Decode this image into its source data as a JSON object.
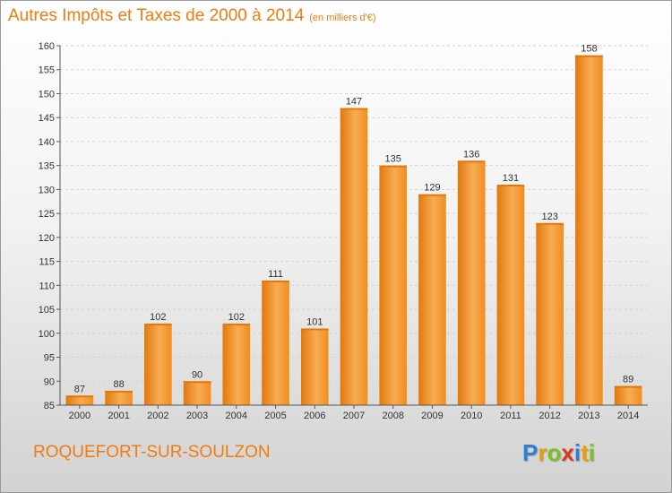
{
  "title": "Autres Impôts et Taxes de 2000 à 2014",
  "subtitle": "(en milliers d'€)",
  "location": "ROQUEFORT-SUR-SOULZON",
  "logo": {
    "letters": [
      "P",
      "r",
      "o",
      "x",
      "i",
      "t",
      "i"
    ],
    "colors": [
      "#2d7fd6",
      "#e8a100",
      "#79c220",
      "#d93a1b",
      "#2d7fd6",
      "#e8a100",
      "#79c220"
    ]
  },
  "chart_data": {
    "type": "bar",
    "title": "Autres Impôts et Taxes de 2000 à 2014",
    "subtitle": "(en milliers d'€)",
    "categories": [
      "2000",
      "2001",
      "2002",
      "2003",
      "2004",
      "2005",
      "2006",
      "2007",
      "2008",
      "2009",
      "2010",
      "2011",
      "2012",
      "2013",
      "2014"
    ],
    "values": [
      87,
      88,
      102,
      90,
      102,
      111,
      101,
      147,
      135,
      129,
      136,
      131,
      123,
      158,
      89
    ],
    "data_labels": [
      "87",
      "88",
      "102",
      "90",
      "102",
      "111",
      "101",
      "147",
      "135",
      "129",
      "136",
      "131",
      "123",
      "158",
      "89"
    ],
    "ylim": [
      85,
      160
    ],
    "yticks": [
      85,
      90,
      95,
      100,
      105,
      110,
      115,
      120,
      125,
      130,
      135,
      140,
      145,
      150,
      155,
      160
    ],
    "grid": true,
    "colors": {
      "bar": "#f28c1e",
      "bar_light": "#f7ad55",
      "bar_dark": "#e2780a",
      "grid": "#d4d4d4",
      "text": "#333333",
      "accent": "#f07c10"
    }
  }
}
